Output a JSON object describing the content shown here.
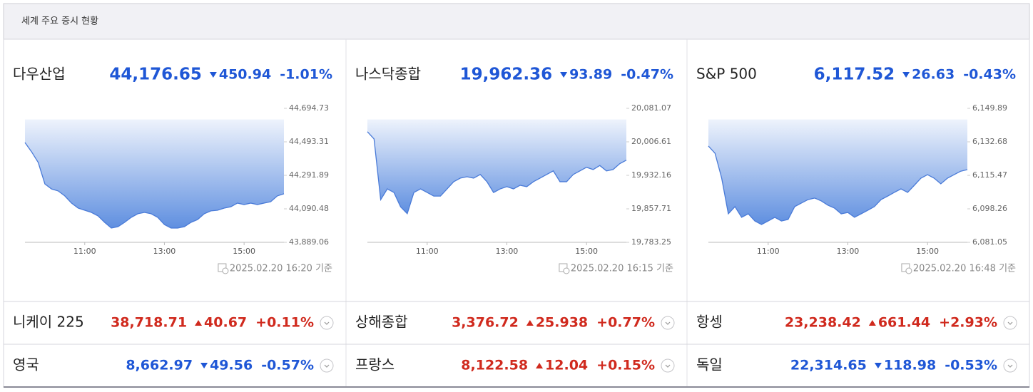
{
  "header": {
    "title": "세계 주요 증시 현황"
  },
  "chart_data": [
    {
      "type": "line",
      "title": "다우산업",
      "price": "44,176.65",
      "change": "450.94",
      "change_pct": "-1.01%",
      "direction": "down",
      "note": "2025.02.20 16:20 기준",
      "x": [
        "09:30",
        "09:40",
        "09:50",
        "10:00",
        "10:10",
        "10:20",
        "10:30",
        "10:40",
        "10:50",
        "11:00",
        "11:10",
        "11:20",
        "11:30",
        "11:40",
        "11:50",
        "12:00",
        "12:10",
        "12:20",
        "12:30",
        "12:40",
        "12:50",
        "13:00",
        "13:10",
        "13:20",
        "13:30",
        "13:40",
        "13:50",
        "14:00",
        "14:10",
        "14:20",
        "14:30",
        "14:40",
        "14:50",
        "15:00",
        "15:10",
        "15:20",
        "15:30",
        "15:40",
        "15:50",
        "16:00"
      ],
      "xlim": [
        "09:30",
        "16:00"
      ],
      "xticks": [
        "11:00",
        "13:00",
        "15:00"
      ],
      "reference": 44627.59,
      "series": [
        {
          "color": "#4a7bd8",
          "values": [
            44489,
            44433,
            44369,
            44240,
            44210,
            44198,
            44168,
            44125,
            44095,
            44082,
            44069,
            44048,
            44009,
            43975,
            43983,
            44009,
            44039,
            44061,
            44069,
            44061,
            44039,
            43996,
            43975,
            43975,
            43983,
            44009,
            44026,
            44061,
            44078,
            44082,
            44095,
            44103,
            44125,
            44116,
            44125,
            44116,
            44125,
            44133,
            44168,
            44181
          ]
        }
      ],
      "ylim": [
        43889.06,
        44694.73
      ],
      "yticks": [
        {
          "value": 44694.73,
          "label": "44,694.73"
        },
        {
          "value": 44493.31,
          "label": "44,493.31"
        },
        {
          "value": 44291.89,
          "label": "44,291.89"
        },
        {
          "value": 44090.48,
          "label": "44,090.48"
        },
        {
          "value": 43889.06,
          "label": "43,889.06"
        }
      ]
    },
    {
      "type": "line",
      "title": "나스닥종합",
      "price": "19,962.36",
      "change": "93.89",
      "change_pct": "-0.47%",
      "direction": "down",
      "note": "2025.02.20 16:15 기준",
      "x": [
        "09:30",
        "09:40",
        "09:50",
        "10:00",
        "10:10",
        "10:20",
        "10:30",
        "10:40",
        "10:50",
        "11:00",
        "11:10",
        "11:20",
        "11:30",
        "11:40",
        "11:50",
        "12:00",
        "12:10",
        "12:20",
        "12:30",
        "12:40",
        "12:50",
        "13:00",
        "13:10",
        "13:20",
        "13:30",
        "13:40",
        "13:50",
        "14:00",
        "14:10",
        "14:20",
        "14:30",
        "14:40",
        "14:50",
        "15:00",
        "15:10",
        "15:20",
        "15:30",
        "15:40",
        "15:50",
        "16:00"
      ],
      "xlim": [
        "09:30",
        "16:00"
      ],
      "xticks": [
        "11:00",
        "13:00",
        "15:00"
      ],
      "reference": 20056.25,
      "series": [
        {
          "color": "#4a7bd8",
          "values": [
            20029,
            20013,
            19878,
            19902,
            19894,
            19862,
            19847,
            19894,
            19902,
            19894,
            19886,
            19886,
            19902,
            19918,
            19926,
            19929,
            19926,
            19934,
            19918,
            19894,
            19902,
            19907,
            19902,
            19910,
            19907,
            19918,
            19926,
            19934,
            19942,
            19918,
            19918,
            19934,
            19942,
            19950,
            19945,
            19954,
            19942,
            19945,
            19958,
            19966
          ]
        }
      ],
      "ylim": [
        19783.25,
        20081.07
      ],
      "yticks": [
        {
          "value": 20081.07,
          "label": "20,081.07"
        },
        {
          "value": 20006.61,
          "label": "20,006.61"
        },
        {
          "value": 19932.16,
          "label": "19,932.16"
        },
        {
          "value": 19857.71,
          "label": "19,857.71"
        },
        {
          "value": 19783.25,
          "label": "19,783.25"
        }
      ]
    },
    {
      "type": "line",
      "title": "S&P 500",
      "price": "6,117.52",
      "change": "26.63",
      "change_pct": "-0.43%",
      "direction": "down",
      "note": "2025.02.20 16:48 기준",
      "x": [
        "09:30",
        "09:40",
        "09:50",
        "10:00",
        "10:10",
        "10:20",
        "10:30",
        "10:40",
        "10:50",
        "11:00",
        "11:10",
        "11:20",
        "11:30",
        "11:40",
        "11:50",
        "12:00",
        "12:10",
        "12:20",
        "12:30",
        "12:40",
        "12:50",
        "13:00",
        "13:10",
        "13:20",
        "13:30",
        "13:40",
        "13:50",
        "14:00",
        "14:10",
        "14:20",
        "14:30",
        "14:40",
        "14:50",
        "15:00",
        "15:10",
        "15:20",
        "15:30",
        "15:40",
        "15:50",
        "16:00"
      ],
      "xlim": [
        "09:30",
        "16:00"
      ],
      "xticks": [
        "11:00",
        "13:00",
        "15:00"
      ],
      "reference": 6144.15,
      "series": [
        {
          "color": "#4a7bd8",
          "values": [
            6130.5,
            6126.8,
            6114.0,
            6095.7,
            6099.4,
            6093.9,
            6095.7,
            6092.0,
            6090.2,
            6092.0,
            6093.9,
            6092.0,
            6092.8,
            6099.4,
            6101.2,
            6103.0,
            6103.8,
            6102.3,
            6100.1,
            6098.6,
            6095.7,
            6096.4,
            6093.9,
            6095.7,
            6097.5,
            6099.4,
            6103.0,
            6104.8,
            6106.7,
            6108.5,
            6106.7,
            6110.3,
            6114.0,
            6115.8,
            6114.0,
            6111.1,
            6114.0,
            6115.8,
            6117.6,
            6118.4
          ]
        }
      ],
      "ylim": [
        6081.05,
        6149.89
      ],
      "yticks": [
        {
          "value": 6149.89,
          "label": "6,149.89"
        },
        {
          "value": 6132.68,
          "label": "6,132.68"
        },
        {
          "value": 6115.47,
          "label": "6,115.47"
        },
        {
          "value": 6098.26,
          "label": "6,098.26"
        },
        {
          "value": 6081.05,
          "label": "6,081.05"
        }
      ]
    }
  ],
  "markets": [
    {
      "name": "니케이 225",
      "value": "38,718.71",
      "change": "40.67",
      "change_pct": "+0.11%",
      "direction": "up"
    },
    {
      "name": "상해종합",
      "value": "3,376.72",
      "change": "25.938",
      "change_pct": "+0.77%",
      "direction": "up"
    },
    {
      "name": "항셍",
      "value": "23,238.42",
      "change": "661.44",
      "change_pct": "+2.93%",
      "direction": "up"
    },
    {
      "name": "영국",
      "value": "8,662.97",
      "change": "49.56",
      "change_pct": "-0.57%",
      "direction": "down"
    },
    {
      "name": "프랑스",
      "value": "8,122.58",
      "change": "12.04",
      "change_pct": "+0.15%",
      "direction": "up"
    },
    {
      "name": "독일",
      "value": "22,314.65",
      "change": "118.98",
      "change_pct": "-0.53%",
      "direction": "down"
    }
  ]
}
